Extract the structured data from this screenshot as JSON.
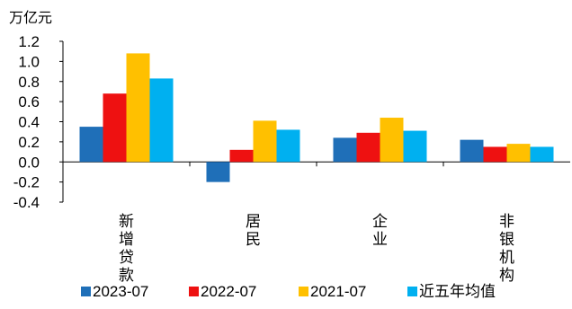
{
  "chart_data": {
    "type": "bar",
    "unit_label": "万亿元",
    "categories": [
      "新增贷款",
      "居民",
      "企业",
      "非银机构"
    ],
    "y_ticks": [
      "1.2",
      "1.0",
      "0.8",
      "0.6",
      "0.4",
      "0.2",
      "0.0",
      "-0.2",
      "-0.4"
    ],
    "ylim": [
      -0.4,
      1.2
    ],
    "grid": false,
    "legend_position": "bottom",
    "series": [
      {
        "name": "2023-07",
        "color": "#1F6FB8",
        "values": [
          0.35,
          -0.2,
          0.24,
          0.22
        ]
      },
      {
        "name": "2022-07",
        "color": "#EE1111",
        "values": [
          0.68,
          0.12,
          0.29,
          0.15
        ]
      },
      {
        "name": "2021-07",
        "color": "#FFC000",
        "values": [
          1.08,
          0.41,
          0.44,
          0.18
        ]
      },
      {
        "name": "近五年均值",
        "color": "#00B0F0",
        "values": [
          0.83,
          0.32,
          0.31,
          0.15
        ]
      }
    ]
  }
}
